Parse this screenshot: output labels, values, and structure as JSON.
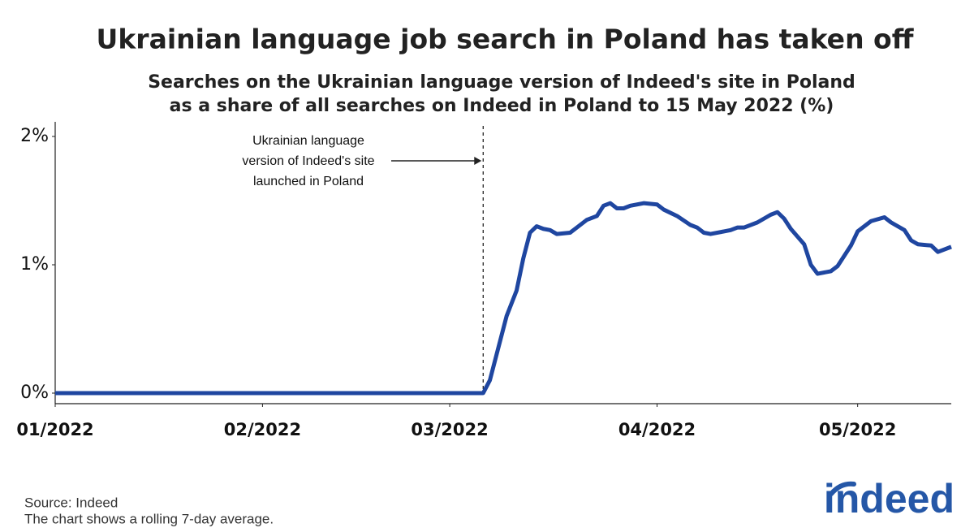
{
  "chart_data": {
    "type": "line",
    "title": "Ukrainian language job search in Poland has taken off",
    "subtitle": [
      "Searches on the Ukrainian language version of Indeed's site in Poland",
      "as a share of all searches on Indeed in Poland to 15 May 2022 (%)"
    ],
    "xlim": [
      0,
      134
    ],
    "xticks": [
      {
        "value": 0,
        "label": "01/2022"
      },
      {
        "value": 31,
        "label": "02/2022"
      },
      {
        "value": 59,
        "label": "03/2022"
      },
      {
        "value": 90,
        "label": "04/2022"
      },
      {
        "value": 120,
        "label": "05/2022"
      }
    ],
    "ylim": [
      0,
      2
    ],
    "yticks": [
      {
        "value": 0,
        "label": "0%"
      },
      {
        "value": 1,
        "label": "1%"
      },
      {
        "value": 2,
        "label": "2%"
      }
    ],
    "x": [
      0,
      64,
      65,
      66,
      67.5,
      69,
      70,
      71,
      72,
      73,
      74,
      75,
      77,
      78,
      79.5,
      81,
      82,
      83,
      84,
      85,
      86,
      88,
      90,
      91,
      93,
      95,
      96,
      97,
      98,
      100,
      101,
      102,
      103,
      105,
      107,
      108,
      109,
      110,
      112,
      113,
      114,
      116,
      117,
      119,
      120,
      122,
      124,
      125,
      127,
      128,
      129,
      131,
      132,
      134
    ],
    "series": [
      {
        "color": "#1f46a0",
        "values": [
          0,
          0,
          0.1,
          0.3,
          0.6,
          0.8,
          1.05,
          1.25,
          1.3,
          1.28,
          1.27,
          1.24,
          1.25,
          1.29,
          1.35,
          1.38,
          1.46,
          1.48,
          1.44,
          1.44,
          1.46,
          1.48,
          1.47,
          1.43,
          1.38,
          1.31,
          1.29,
          1.25,
          1.24,
          1.26,
          1.27,
          1.29,
          1.29,
          1.33,
          1.39,
          1.41,
          1.36,
          1.28,
          1.16,
          1.0,
          0.93,
          0.95,
          0.99,
          1.15,
          1.26,
          1.34,
          1.37,
          1.33,
          1.27,
          1.19,
          1.16,
          1.15,
          1.1,
          1.14
        ]
      }
    ],
    "annotation": {
      "x": 64,
      "text": [
        "Ukrainian language",
        "version of Indeed's site",
        "launched in Poland"
      ]
    },
    "source": "Source: Indeed",
    "note": "The chart shows a rolling 7-day average.",
    "logo": "indeed"
  }
}
